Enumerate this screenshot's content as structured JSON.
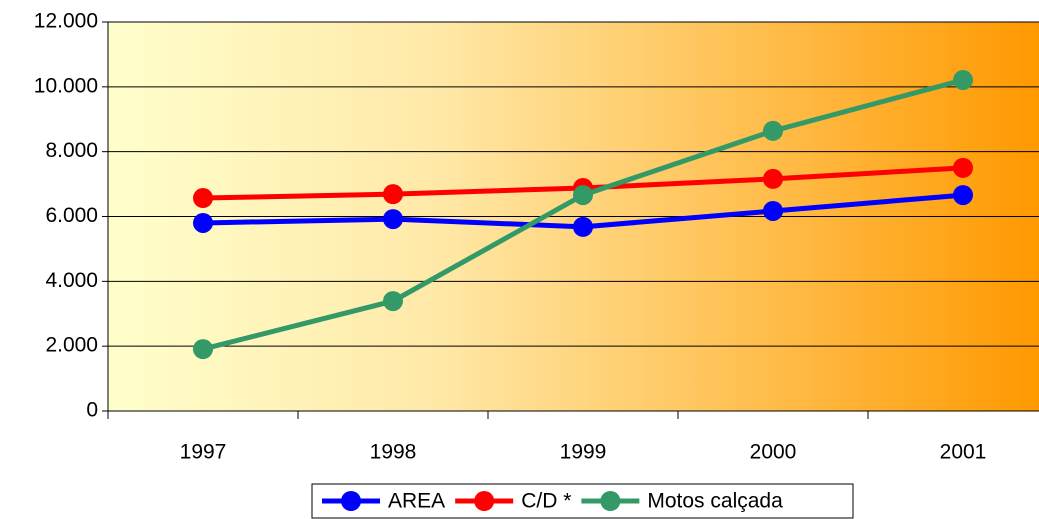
{
  "chart_data": {
    "type": "line",
    "categories": [
      "1997",
      "1998",
      "1999",
      "2000",
      "2001"
    ],
    "series": [
      {
        "name": "AREA",
        "color": "#0000ff",
        "values": [
          5800,
          5920,
          5680,
          6170,
          6660
        ]
      },
      {
        "name": "C/D *",
        "color": "#ff0000",
        "values": [
          6570,
          6690,
          6880,
          7160,
          7500
        ]
      },
      {
        "name": "Motos calçada",
        "color": "#339966",
        "values": [
          1910,
          3390,
          6660,
          8640,
          10210
        ]
      }
    ],
    "ylim": [
      0,
      12000
    ],
    "yticks": [
      0,
      {
        "value": 2000,
        "label": "2.000"
      },
      {
        "value": 4000,
        "label": "4.000"
      },
      {
        "value": 6000,
        "label": "6.000"
      },
      {
        "value": 8000,
        "label": "8.000"
      },
      {
        "value": 10000,
        "label": "10.000"
      },
      {
        "value": 12000,
        "label": "12.000"
      }
    ],
    "grid": true,
    "legend": "bottom"
  }
}
